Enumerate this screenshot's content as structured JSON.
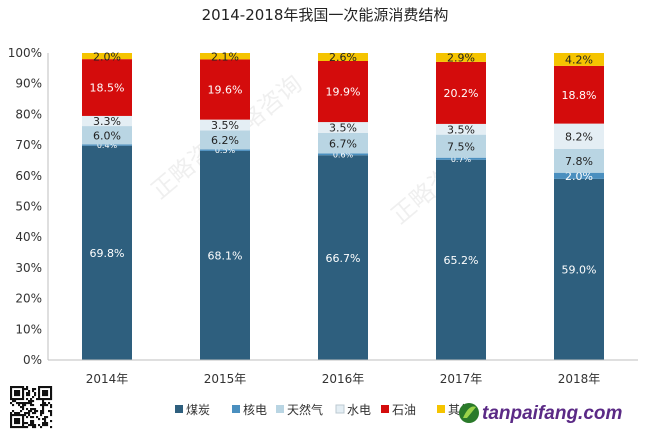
{
  "chart_data": {
    "type": "bar",
    "stacked": true,
    "title": "2014-2018年我国一次能源消费结构",
    "categories": [
      "2014年",
      "2015年",
      "2016年",
      "2017年",
      "2018年"
    ],
    "yticks": [
      "0%",
      "10%",
      "20%",
      "30%",
      "40%",
      "50%",
      "60%",
      "70%",
      "80%",
      "90%",
      "100%"
    ],
    "ylim": [
      0,
      100
    ],
    "grid": false,
    "legend_position": "bottom",
    "series": [
      {
        "name": "煤炭",
        "color": "#2e5f7e",
        "values": [
          69.8,
          68.1,
          66.7,
          65.2,
          59.0
        ],
        "labels": [
          "69.8%",
          "68.1%",
          "66.7%",
          "65.2%",
          "59.0%"
        ]
      },
      {
        "name": "核电",
        "color": "#4a8fbf",
        "values": [
          0.4,
          0.5,
          0.6,
          0.7,
          2.0
        ],
        "labels": [
          "0.4%",
          "0.5%",
          "0.6%",
          "0.7%",
          "2.0%"
        ]
      },
      {
        "name": "天然气",
        "color": "#b9d5e3",
        "values": [
          6.0,
          6.2,
          6.7,
          7.5,
          7.8
        ],
        "labels": [
          "6.0%",
          "6.2%",
          "6.7%",
          "7.5%",
          "7.8%"
        ]
      },
      {
        "name": "水电",
        "color": "#e4eef4",
        "values": [
          3.3,
          3.5,
          3.5,
          3.5,
          8.2
        ],
        "labels": [
          "3.3%",
          "3.5%",
          "3.5%",
          "3.5%",
          "8.2%"
        ]
      },
      {
        "name": "石油",
        "color": "#d40c0c",
        "values": [
          18.5,
          19.6,
          19.9,
          20.2,
          18.8
        ],
        "labels": [
          "18.5%",
          "19.6%",
          "19.9%",
          "20.2%",
          "18.8%"
        ]
      },
      {
        "name": "其他",
        "color": "#f5c400",
        "values": [
          2.0,
          2.1,
          2.6,
          2.9,
          4.2
        ],
        "labels": [
          "2.0%",
          "2.1%",
          "2.6%",
          "2.9%",
          "4.2%"
        ]
      }
    ]
  },
  "watermark": {
    "text": "正略咨询"
  },
  "site_logo": {
    "text": "tanpaifang.com",
    "color": "#5b2a86"
  }
}
